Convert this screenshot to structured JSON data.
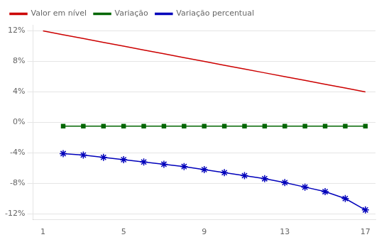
{
  "chart_data": {
    "type": "line",
    "x": [
      1,
      2,
      3,
      4,
      5,
      6,
      7,
      8,
      9,
      10,
      11,
      12,
      13,
      14,
      15,
      16,
      17
    ],
    "series": [
      {
        "name": "Valor em nível",
        "color": "#cc0000",
        "marker": "none",
        "line_style": "solid",
        "values": [
          0.12,
          0.115,
          0.11,
          0.105,
          0.1,
          0.095,
          0.09,
          0.085,
          0.08,
          0.075,
          0.07,
          0.065,
          0.06,
          0.055,
          0.05,
          0.045,
          0.04
        ]
      },
      {
        "name": "Variação",
        "color": "#006600",
        "marker": "square",
        "line_style": "solid",
        "values": [
          null,
          -0.005,
          -0.005,
          -0.005,
          -0.005,
          -0.005,
          -0.005,
          -0.005,
          -0.005,
          -0.005,
          -0.005,
          -0.005,
          -0.005,
          -0.005,
          -0.005,
          -0.005,
          -0.005
        ]
      },
      {
        "name": "Variação percentual",
        "color": "#0000bb",
        "marker": "star",
        "line_style": "solid",
        "values": [
          null,
          -0.041,
          -0.043,
          -0.046,
          -0.049,
          -0.052,
          -0.055,
          -0.058,
          -0.062,
          -0.066,
          -0.07,
          -0.074,
          -0.079,
          -0.085,
          -0.091,
          -0.1,
          -0.115
        ]
      }
    ],
    "xlim": [
      0.5,
      17.5
    ],
    "xticks": [
      1,
      5,
      9,
      13,
      17
    ],
    "ylim": [
      -0.128,
      0.128
    ],
    "yticks": [
      {
        "value": -0.12,
        "label": "-12%"
      },
      {
        "value": -0.08,
        "label": "-8%"
      },
      {
        "value": -0.04,
        "label": "-4%"
      },
      {
        "value": 0.0,
        "label": "0%"
      },
      {
        "value": 0.04,
        "label": "4%"
      },
      {
        "value": 0.08,
        "label": "8%"
      },
      {
        "value": 0.12,
        "label": "12%"
      }
    ],
    "grid": "y",
    "legend": "upper left"
  }
}
